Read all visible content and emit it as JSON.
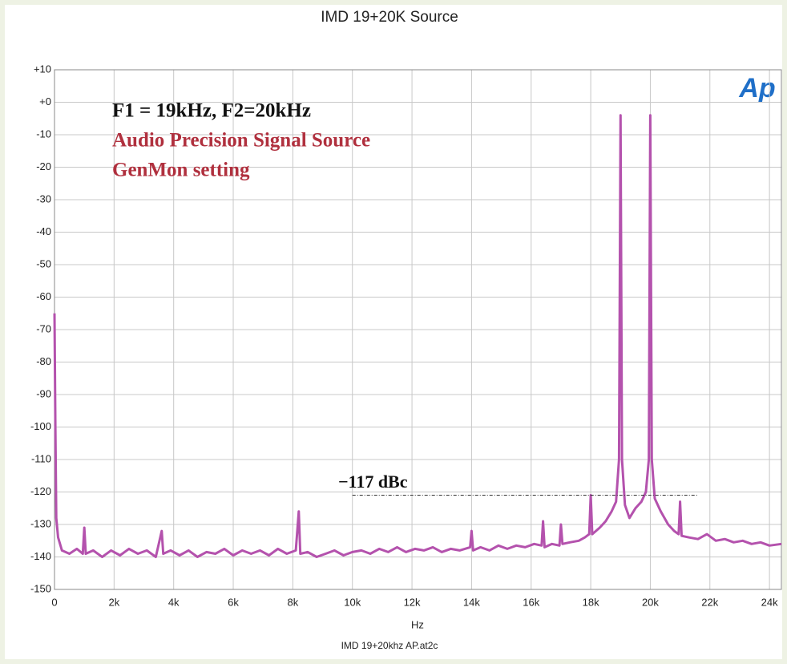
{
  "chart_data": {
    "type": "line",
    "title": "IMD 19+20K Source",
    "x_label": "Hz",
    "footer": "IMD 19+20khz AP.at2c",
    "logo": "Ap",
    "color": "#b452ad",
    "grid": true,
    "xlim": [
      0,
      24400
    ],
    "ylim": [
      -150,
      10
    ],
    "xticks": [
      0,
      {
        "value": 2000,
        "label": "2k"
      },
      {
        "value": 4000,
        "label": "4k"
      },
      {
        "value": 6000,
        "label": "6k"
      },
      {
        "value": 8000,
        "label": "8k"
      },
      {
        "value": 10000,
        "label": "10k"
      },
      {
        "value": 12000,
        "label": "12k"
      },
      {
        "value": 14000,
        "label": "14k"
      },
      {
        "value": 16000,
        "label": "16k"
      },
      {
        "value": 18000,
        "label": "18k"
      },
      {
        "value": 20000,
        "label": "20k"
      },
      {
        "value": 22000,
        "label": "22k"
      },
      {
        "value": 24000,
        "label": "24k"
      }
    ],
    "yticks": [
      {
        "value": 10,
        "label": "+10"
      },
      {
        "value": 0,
        "label": "+0"
      },
      -10,
      -20,
      -30,
      -40,
      -50,
      -60,
      -70,
      -80,
      -90,
      -100,
      -110,
      -120,
      -130,
      -140,
      -150
    ],
    "annotations": [
      {
        "text": "F1 = 19kHz,   F2=20kHz",
        "color": "#111111"
      },
      {
        "text": "Audio Precision Signal Source",
        "color": "#b0303e"
      },
      {
        "text": "GenMon setting",
        "color": "#b0303e"
      },
      {
        "text": "−117 dBc",
        "color": "#111111"
      }
    ],
    "ref_line": {
      "y": -121,
      "x": [
        10000,
        21600
      ]
    },
    "x": [
      0,
      30,
      60,
      120,
      250,
      500,
      750,
      950,
      1000,
      1050,
      1300,
      1600,
      1900,
      2200,
      2500,
      2800,
      3100,
      3400,
      3600,
      3650,
      3900,
      4200,
      4500,
      4800,
      5100,
      5400,
      5700,
      6000,
      6300,
      6600,
      6900,
      7200,
      7500,
      7800,
      8100,
      8200,
      8250,
      8500,
      8800,
      9100,
      9400,
      9700,
      10000,
      10300,
      10600,
      10900,
      11200,
      11500,
      11800,
      12100,
      12400,
      12700,
      13000,
      13300,
      13600,
      13950,
      14000,
      14050,
      14300,
      14600,
      14900,
      15200,
      15500,
      15800,
      16100,
      16350,
      16400,
      16450,
      16700,
      16950,
      17000,
      17050,
      17300,
      17600,
      17800,
      17950,
      18000,
      18050,
      18300,
      18500,
      18700,
      18850,
      18950,
      19000,
      19050,
      19150,
      19300,
      19500,
      19700,
      19850,
      19950,
      20000,
      20050,
      20150,
      20350,
      20600,
      20800,
      20950,
      21000,
      21050,
      21300,
      21600,
      21900,
      22200,
      22500,
      22800,
      23100,
      23400,
      23700,
      24000,
      24400
    ],
    "values": [
      -65,
      -100,
      -128,
      -134,
      -138,
      -139,
      -137.5,
      -139,
      -131,
      -139,
      -138,
      -140,
      -138,
      -139.5,
      -137.5,
      -139,
      -138,
      -140,
      -132,
      -139,
      -138,
      -139.5,
      -138,
      -140,
      -138.5,
      -139,
      -137.5,
      -139.5,
      -138,
      -139,
      -138,
      -139.5,
      -137.5,
      -139,
      -138,
      -126,
      -139,
      -138.5,
      -140,
      -139,
      -138,
      -139.5,
      -138.5,
      -138,
      -139,
      -137.5,
      -138.5,
      -137,
      -138.5,
      -137.5,
      -138,
      -137,
      -138.5,
      -137.5,
      -138,
      -137,
      -132,
      -138,
      -137,
      -138,
      -136.5,
      -137.5,
      -136.5,
      -137,
      -136,
      -136.5,
      -129,
      -137,
      -136,
      -136.5,
      -130,
      -136,
      -135.5,
      -135,
      -134,
      -133,
      -121,
      -133,
      -131,
      -129,
      -126,
      -123,
      -110,
      -4,
      -110,
      -124,
      -128,
      -125,
      -123,
      -120,
      -110,
      -4,
      -110,
      -122,
      -126,
      -130,
      -132,
      -133,
      -123,
      -133.5,
      -134,
      -134.5,
      -133,
      -135,
      -134.5,
      -135.5,
      -135,
      -136,
      -135.5,
      -136.5,
      -136
    ]
  }
}
